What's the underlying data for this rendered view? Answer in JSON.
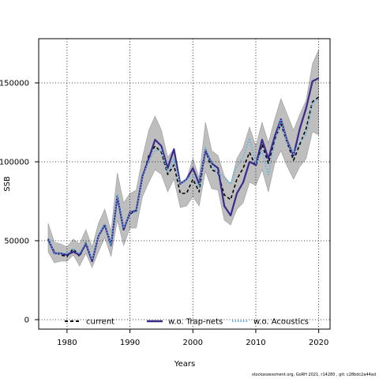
{
  "chart_data": {
    "type": "line",
    "xlabel": "Years",
    "ylabel": "SSB",
    "xlim": [
      1975.5,
      2021.8
    ],
    "ylim": [
      -6000,
      178000
    ],
    "x_ticks": [
      1980,
      1990,
      2000,
      2010,
      2020
    ],
    "y_ticks": [
      0,
      50000,
      100000,
      150000
    ],
    "x_tick_labels": [
      "1980",
      "1990",
      "2000",
      "2010",
      "2020"
    ],
    "y_tick_labels": [
      "0",
      "50000",
      "100000",
      "150000"
    ],
    "grid": true,
    "legend_position": "bottom",
    "x": [
      1977,
      1978,
      1979,
      1980,
      1981,
      1982,
      1983,
      1984,
      1985,
      1986,
      1987,
      1988,
      1989,
      1990,
      1991,
      1992,
      1993,
      1994,
      1995,
      1996,
      1997,
      1998,
      1999,
      2000,
      2001,
      2002,
      2003,
      2004,
      2005,
      2006,
      2007,
      2008,
      2009,
      2010,
      2011,
      2012,
      2013,
      2014,
      2015,
      2016,
      2017,
      2018,
      2019,
      2020
    ],
    "band": {
      "upper": [
        61000,
        49000,
        48000,
        46000,
        51000,
        48000,
        57000,
        46000,
        61000,
        70000,
        56000,
        93000,
        74000,
        80000,
        82000,
        103000,
        120000,
        129000,
        120000,
        103000,
        108000,
        87000,
        89000,
        102000,
        90000,
        125000,
        107000,
        104000,
        91000,
        86000,
        102000,
        109000,
        122000,
        110000,
        125000,
        112000,
        127000,
        140000,
        130000,
        120000,
        130000,
        139000,
        162000,
        171000
      ],
      "lower": [
        43000,
        36000,
        37000,
        37000,
        41000,
        34000,
        42000,
        33000,
        43000,
        52000,
        40000,
        63000,
        47000,
        58000,
        58000,
        78000,
        87000,
        95000,
        92000,
        81000,
        89000,
        71000,
        72000,
        78000,
        72000,
        94000,
        83000,
        82000,
        63000,
        60000,
        70000,
        74000,
        87000,
        85000,
        95000,
        81000,
        99000,
        107000,
        97000,
        89000,
        97000,
        102000,
        119000,
        117000
      ]
    },
    "series": [
      {
        "name": "current",
        "color": "#000000",
        "dash": "dash",
        "values": [
          51000,
          43000,
          41000,
          40000,
          45000,
          40000,
          49000,
          37000,
          53000,
          60000,
          48000,
          78000,
          58000,
          67000,
          69000,
          90000,
          104000,
          110000,
          106000,
          92000,
          98000,
          80000,
          80000,
          89000,
          81000,
          108000,
          95000,
          93000,
          79000,
          76000,
          89000,
          96000,
          106000,
          97000,
          111000,
          99000,
          114000,
          124000,
          112000,
          101000,
          111000,
          121000,
          138000,
          141000
        ]
      },
      {
        "name": "w.o. Trap-nets",
        "color": "#3a2a8c",
        "dash": "solid",
        "values": [
          51000,
          42000,
          42000,
          41000,
          43000,
          41000,
          48000,
          37000,
          53000,
          60000,
          47000,
          78000,
          57000,
          68000,
          69000,
          91000,
          102000,
          114000,
          110000,
          96000,
          108000,
          86000,
          89000,
          96000,
          86000,
          107000,
          99000,
          96000,
          72000,
          66000,
          80000,
          87000,
          100000,
          98000,
          114000,
          102000,
          116000,
          127000,
          113000,
          104000,
          121000,
          134000,
          151000,
          153000
        ]
      },
      {
        "name": "w.o. Acoustics",
        "color": "#5bb4e3",
        "dash": "dot",
        "values": [
          52000,
          42000,
          42000,
          42000,
          45000,
          42000,
          49000,
          38000,
          53000,
          61000,
          47000,
          79000,
          58000,
          68000,
          68000,
          90000,
          101000,
          107000,
          108000,
          93000,
          102000,
          86000,
          89000,
          91000,
          84000,
          109000,
          98000,
          93000,
          90000,
          86000,
          97000,
          103000,
          115000,
          99000,
          107000,
          92000,
          112000,
          127000,
          112000,
          105000,
          113000,
          117000,
          137000,
          140000
        ]
      }
    ],
    "band_color": "#bebebe",
    "footer": "stockassessment.org, GoRH 2021, r14280 , git: c28bdc2a44ad"
  }
}
